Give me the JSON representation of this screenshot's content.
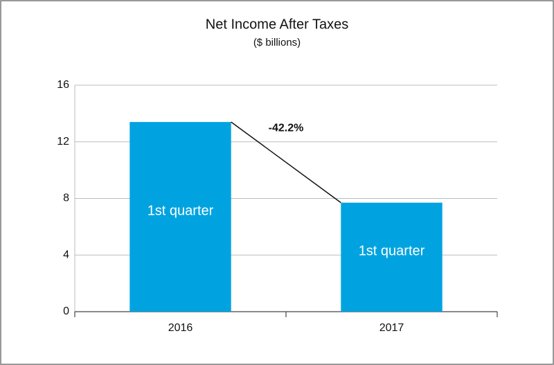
{
  "chart_data": {
    "type": "bar",
    "title": "Net Income After Taxes",
    "subtitle": "($ billions)",
    "categories": [
      "2016",
      "2017"
    ],
    "values": [
      13.4,
      7.7
    ],
    "bar_labels": [
      "1st quarter",
      "1st quarter"
    ],
    "annotation": "-42.2%",
    "color": "#00a3e0",
    "ylim": [
      0,
      16
    ],
    "yticks": [
      0,
      4,
      8,
      12,
      16
    ],
    "grid": true
  }
}
